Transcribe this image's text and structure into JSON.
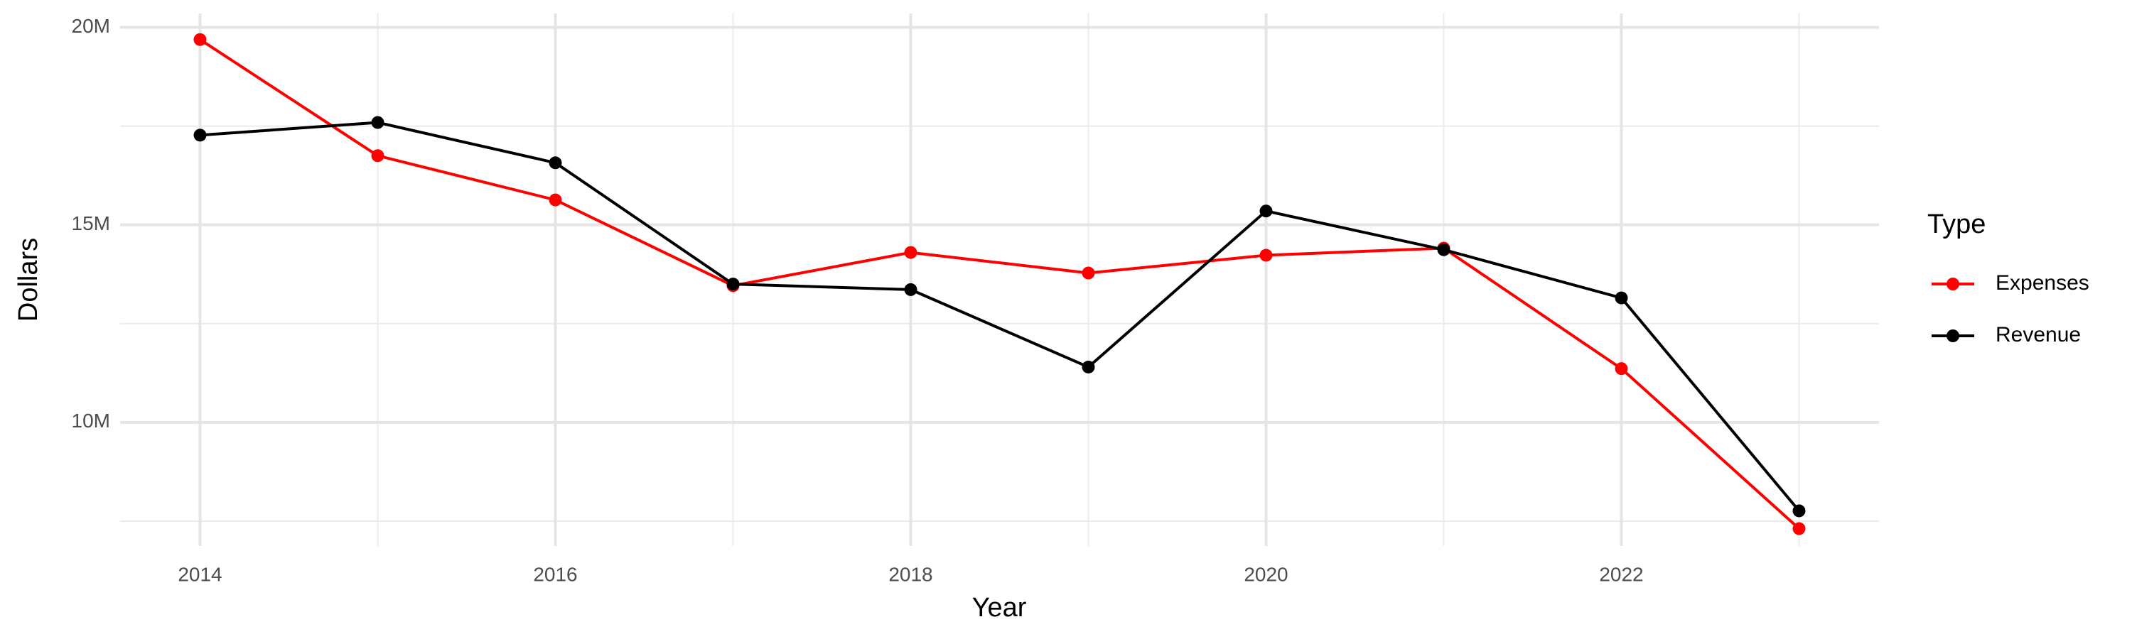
{
  "chart_data": {
    "type": "line",
    "x_label": "Year",
    "y_label": "Dollars",
    "legend_title": "Type",
    "legend_position": "right",
    "grid": true,
    "x": [
      2014,
      2015,
      2016,
      2017,
      2018,
      2019,
      2020,
      2021,
      2022,
      2023
    ],
    "series": [
      {
        "name": "Expenses",
        "color": "#ff0000",
        "values": [
          19690000,
          16750000,
          15630000,
          13460000,
          14300000,
          13780000,
          14230000,
          14410000,
          11360000,
          7310000
        ]
      },
      {
        "name": "Revenue",
        "color": "#000000",
        "values": [
          17270000,
          17590000,
          16570000,
          13500000,
          13360000,
          11400000,
          15350000,
          14370000,
          13150000,
          7760000
        ]
      }
    ],
    "xlim": [
      2013.55,
      2023.45
    ],
    "xticks": [
      2014,
      2016,
      2018,
      2020,
      2022
    ],
    "ylim": [
      6870000,
      20350000
    ],
    "yticks": [
      {
        "value": 10000000,
        "label": "10M"
      },
      {
        "value": 15000000,
        "label": "15M"
      },
      {
        "value": 20000000,
        "label": "20M"
      }
    ]
  }
}
